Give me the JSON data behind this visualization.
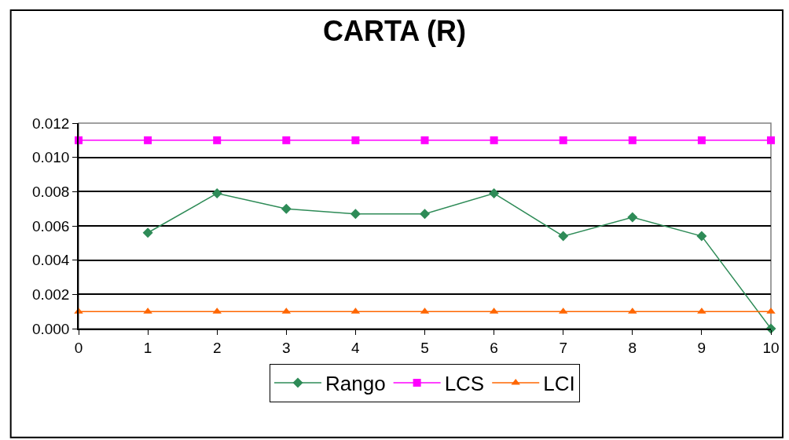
{
  "chart_data": {
    "type": "line",
    "title": "CARTA (R)",
    "x": [
      0,
      1,
      2,
      3,
      4,
      5,
      6,
      7,
      8,
      9,
      10
    ],
    "series": [
      {
        "name": "Rango",
        "color": "#2e8b57",
        "marker": "diamond",
        "values": [
          null,
          0.0056,
          0.0079,
          0.007,
          0.0067,
          0.0067,
          0.0079,
          0.0054,
          0.0065,
          0.0054,
          0.0
        ]
      },
      {
        "name": "LCS",
        "color": "#ff00ff",
        "marker": "square",
        "values": [
          0.011,
          0.011,
          0.011,
          0.011,
          0.011,
          0.011,
          0.011,
          0.011,
          0.011,
          0.011,
          0.011
        ]
      },
      {
        "name": "LCI",
        "color": "#ff6600",
        "marker": "triangle",
        "values": [
          0.001,
          0.001,
          0.001,
          0.001,
          0.001,
          0.001,
          0.001,
          0.001,
          0.001,
          0.001,
          0.001
        ]
      }
    ],
    "xlim": [
      0,
      10
    ],
    "xticks": [
      0,
      1,
      2,
      3,
      4,
      5,
      6,
      7,
      8,
      9,
      10
    ],
    "ylim": [
      0,
      0.012
    ],
    "yticks": [
      {
        "value": 0,
        "label": "0.000"
      },
      {
        "value": 0.002,
        "label": "0.002"
      },
      {
        "value": 0.004,
        "label": "0.004"
      },
      {
        "value": 0.006,
        "label": "0.006"
      },
      {
        "value": 0.008,
        "label": "0.008"
      },
      {
        "value": 0.01,
        "label": "0.010"
      },
      {
        "value": 0.012,
        "label": "0.012"
      }
    ],
    "grid": "y",
    "legend": "bottom",
    "line_style": "solid"
  }
}
